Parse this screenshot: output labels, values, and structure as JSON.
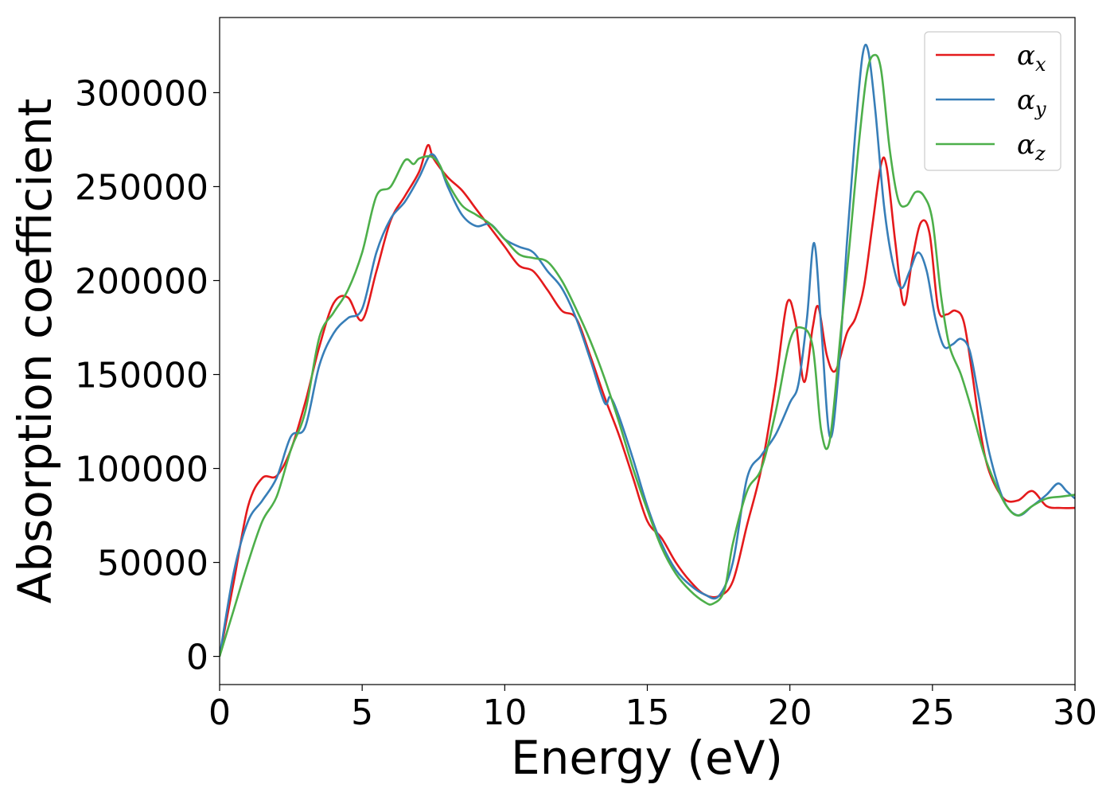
{
  "chart_data": {
    "type": "line",
    "xlabel": "Energy (eV)",
    "ylabel": "Absorption coefficient",
    "xlim": [
      0,
      30
    ],
    "ylim": [
      -15000,
      340000
    ],
    "xticks": [
      0,
      5,
      10,
      15,
      20,
      25,
      30
    ],
    "xtick_labels": [
      "0",
      "5",
      "10",
      "15",
      "20",
      "25",
      "30"
    ],
    "yticks": [
      0,
      50000,
      100000,
      150000,
      200000,
      250000,
      300000
    ],
    "ytick_labels": [
      "0",
      "50000",
      "100000",
      "150000",
      "200000",
      "250000",
      "300000"
    ],
    "grid": false,
    "legend_position": "top-right",
    "series": [
      {
        "name": "α_x",
        "name_base": "α",
        "name_sub": "x",
        "color": "#e41a1c",
        "x": [
          0,
          0.5,
          1.0,
          1.5,
          2.0,
          2.5,
          3.0,
          3.5,
          4.0,
          4.5,
          5.0,
          5.5,
          6.0,
          6.5,
          7.0,
          7.3,
          7.5,
          8.0,
          8.5,
          9.0,
          9.5,
          10.0,
          10.5,
          11.0,
          11.5,
          12.0,
          12.5,
          13.0,
          13.5,
          14.0,
          14.5,
          15.0,
          15.5,
          16.0,
          16.5,
          17.0,
          17.5,
          18.0,
          18.5,
          19.0,
          19.5,
          19.9,
          20.2,
          20.5,
          20.8,
          21.0,
          21.3,
          21.6,
          22.0,
          22.3,
          22.6,
          22.9,
          23.2,
          23.4,
          23.7,
          24.0,
          24.3,
          24.6,
          24.9,
          25.2,
          25.5,
          25.8,
          26.1,
          26.4,
          26.7,
          27.0,
          27.5,
          28.0,
          28.5,
          29.0,
          29.5,
          30.0
        ],
        "y": [
          0,
          40000,
          80000,
          95000,
          96000,
          110000,
          135000,
          165000,
          188000,
          191000,
          179000,
          205000,
          232000,
          245000,
          258000,
          272000,
          265000,
          255000,
          248000,
          238000,
          228000,
          218000,
          208000,
          205000,
          195000,
          184000,
          180000,
          160000,
          138000,
          118000,
          95000,
          72000,
          63000,
          50000,
          40000,
          33000,
          32000,
          40000,
          70000,
          100000,
          145000,
          188000,
          178000,
          146000,
          175000,
          186000,
          160000,
          152000,
          172000,
          180000,
          197000,
          230000,
          262000,
          260000,
          220000,
          187000,
          212000,
          231000,
          225000,
          185000,
          182000,
          184000,
          178000,
          150000,
          118000,
          98000,
          84000,
          83000,
          88000,
          80000,
          79000,
          79000
        ]
      },
      {
        "name": "α_y",
        "name_base": "α",
        "name_sub": "y",
        "color": "#377eb8",
        "x": [
          0,
          0.5,
          1.0,
          1.5,
          2.0,
          2.5,
          3.0,
          3.5,
          4.0,
          4.5,
          5.0,
          5.5,
          6.0,
          6.5,
          7.0,
          7.4,
          7.7,
          8.0,
          8.5,
          9.0,
          9.5,
          10.0,
          10.5,
          11.0,
          11.5,
          12.0,
          12.5,
          13.0,
          13.5,
          13.7,
          14.0,
          14.5,
          15.0,
          15.5,
          16.0,
          16.5,
          17.0,
          17.5,
          18.0,
          18.5,
          19.0,
          19.5,
          20.0,
          20.3,
          20.6,
          20.85,
          21.1,
          21.4,
          21.7,
          22.0,
          22.3,
          22.55,
          22.75,
          23.0,
          23.3,
          23.6,
          23.9,
          24.2,
          24.5,
          24.8,
          25.1,
          25.4,
          25.7,
          26.0,
          26.3,
          26.6,
          27.0,
          27.5,
          28.0,
          28.5,
          29.0,
          29.4,
          29.7,
          30.0
        ],
        "y": [
          0,
          45000,
          72000,
          83000,
          95000,
          117000,
          122000,
          155000,
          172000,
          180000,
          185000,
          215000,
          233000,
          242000,
          255000,
          267000,
          262000,
          250000,
          235000,
          229000,
          230000,
          222000,
          218000,
          215000,
          205000,
          196000,
          180000,
          158000,
          135000,
          138000,
          128000,
          105000,
          80000,
          60000,
          46000,
          38000,
          33000,
          32000,
          50000,
          95000,
          107000,
          118000,
          135000,
          145000,
          180000,
          220000,
          175000,
          117000,
          150000,
          220000,
          280000,
          320000,
          322000,
          290000,
          240000,
          210000,
          196000,
          205000,
          215000,
          205000,
          180000,
          165000,
          166000,
          169000,
          163000,
          140000,
          108000,
          83000,
          75000,
          80000,
          86000,
          92000,
          88000,
          84000
        ]
      },
      {
        "name": "α_z",
        "name_base": "α",
        "name_sub": "z",
        "color": "#4daf4a",
        "x": [
          0,
          0.5,
          1.0,
          1.5,
          2.0,
          2.5,
          3.0,
          3.5,
          4.0,
          4.5,
          5.0,
          5.5,
          6.0,
          6.5,
          6.8,
          7.0,
          7.4,
          7.7,
          8.0,
          8.5,
          9.0,
          9.5,
          10.0,
          10.5,
          11.0,
          11.5,
          12.0,
          12.5,
          13.0,
          13.5,
          14.0,
          14.5,
          15.0,
          15.5,
          16.0,
          16.5,
          17.0,
          17.3,
          17.7,
          18.0,
          18.5,
          19.0,
          19.5,
          20.0,
          20.4,
          20.8,
          21.1,
          21.4,
          21.8,
          22.1,
          22.4,
          22.7,
          22.95,
          23.2,
          23.5,
          23.8,
          24.1,
          24.4,
          24.7,
          25.0,
          25.3,
          25.6,
          26.0,
          26.4,
          26.8,
          27.2,
          27.6,
          28.0,
          28.5,
          29.0,
          29.5,
          30.0
        ],
        "y": [
          0,
          25000,
          50000,
          72000,
          85000,
          110000,
          130000,
          170000,
          183000,
          195000,
          215000,
          245000,
          250000,
          264000,
          262000,
          265000,
          266000,
          262000,
          252000,
          240000,
          235000,
          230000,
          222000,
          214000,
          212000,
          210000,
          200000,
          185000,
          168000,
          148000,
          125000,
          100000,
          78000,
          58000,
          44000,
          35000,
          29000,
          28000,
          35000,
          60000,
          88000,
          100000,
          130000,
          168000,
          175000,
          165000,
          120000,
          115000,
          175000,
          220000,
          270000,
          310000,
          320000,
          312000,
          270000,
          243000,
          240000,
          247000,
          245000,
          232000,
          192000,
          165000,
          150000,
          130000,
          108000,
          92000,
          80000,
          75000,
          80000,
          84000,
          85000,
          86000
        ]
      }
    ]
  }
}
